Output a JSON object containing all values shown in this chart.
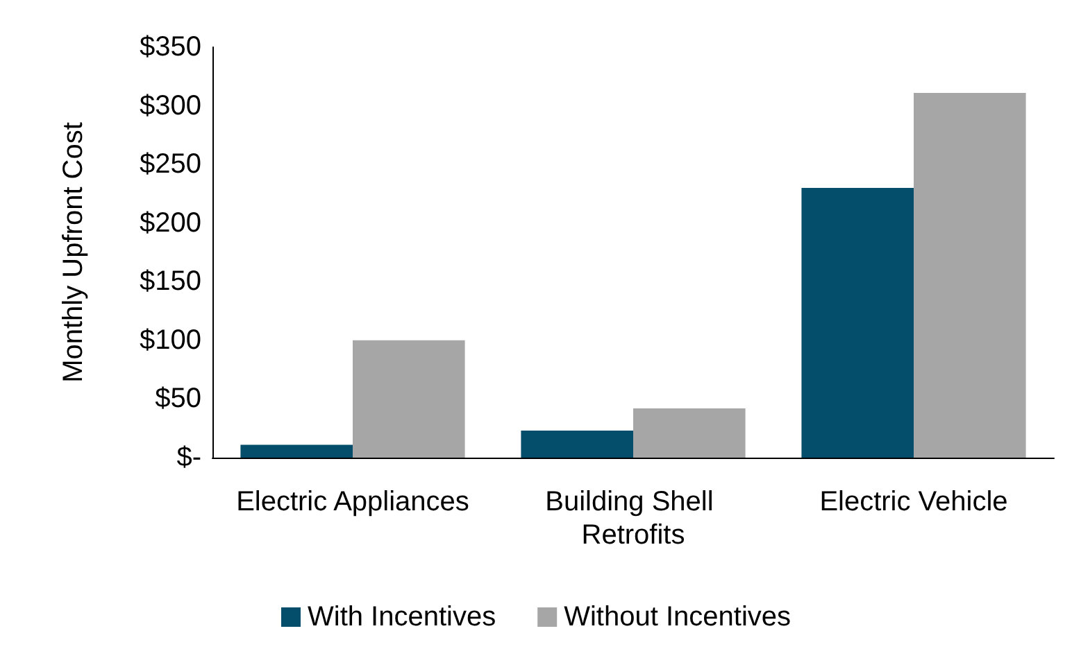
{
  "chart_data": {
    "type": "bar",
    "ylabel": "Monthly Upfront Cost",
    "categories": [
      "Electric Appliances",
      "Building Shell Retrofits",
      "Electric Vehicle"
    ],
    "series": [
      {
        "name": "With Incentives",
        "color": "#044e6c",
        "values": [
          11,
          23,
          230
        ]
      },
      {
        "name": "Without Incentives",
        "color": "#a6a6a6",
        "values": [
          100,
          42,
          311
        ]
      }
    ],
    "ylim": [
      0,
      350
    ],
    "yticks": [
      {
        "value": 0,
        "label": "$-"
      },
      {
        "value": 50,
        "label": "$50"
      },
      {
        "value": 100,
        "label": "$100"
      },
      {
        "value": 150,
        "label": "$150"
      },
      {
        "value": 200,
        "label": "$200"
      },
      {
        "value": 250,
        "label": "$250"
      },
      {
        "value": 300,
        "label": "$300"
      },
      {
        "value": 350,
        "label": "$350"
      }
    ],
    "grid": false,
    "legend": "bottom"
  }
}
